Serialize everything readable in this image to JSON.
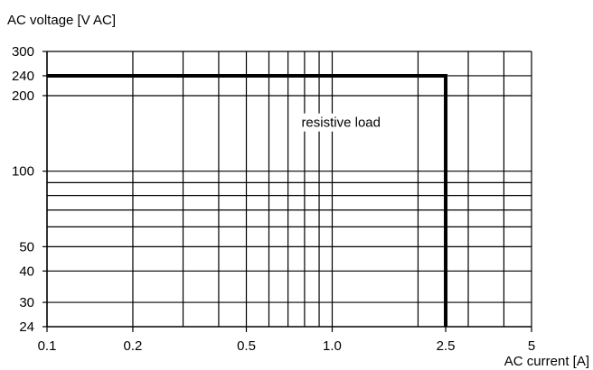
{
  "chart_data": {
    "type": "line",
    "title": "",
    "ylabel": "AC voltage  [V AC]",
    "xlabel": "AC current [A]",
    "x_scale": "log",
    "y_scale": "log",
    "xlim": [
      0.1,
      5
    ],
    "ylim": [
      24,
      300
    ],
    "grid": true,
    "x_ticks": [
      {
        "value": 0.1,
        "label": "0.1"
      },
      {
        "value": 0.2,
        "label": "0.2"
      },
      {
        "value": 0.5,
        "label": "0.5"
      },
      {
        "value": 1.0,
        "label": "1.0"
      },
      {
        "value": 2.5,
        "label": "2.5"
      },
      {
        "value": 5,
        "label": "5"
      }
    ],
    "y_ticks": [
      {
        "value": 24,
        "label": "24"
      },
      {
        "value": 30,
        "label": "30"
      },
      {
        "value": 40,
        "label": "40"
      },
      {
        "value": 50,
        "label": "50"
      },
      {
        "value": 100,
        "label": "100"
      },
      {
        "value": 200,
        "label": "200"
      },
      {
        "value": 240,
        "label": "240"
      },
      {
        "value": 300,
        "label": "300"
      }
    ],
    "x_gridlines": [
      0.2,
      0.3,
      0.4,
      0.5,
      0.6,
      0.7,
      0.8,
      0.9,
      1.0,
      2.0,
      3.0,
      4.0,
      5.0
    ],
    "y_gridlines": [
      30,
      40,
      50,
      60,
      70,
      80,
      90,
      100,
      200,
      240
    ],
    "series": [
      {
        "label": "resistive load",
        "points": [
          [
            0.1,
            240
          ],
          [
            2.5,
            240
          ],
          [
            2.5,
            24
          ]
        ]
      }
    ],
    "annotations": [
      {
        "text": "resistive load",
        "x": 0.78,
        "y": 150
      }
    ]
  }
}
